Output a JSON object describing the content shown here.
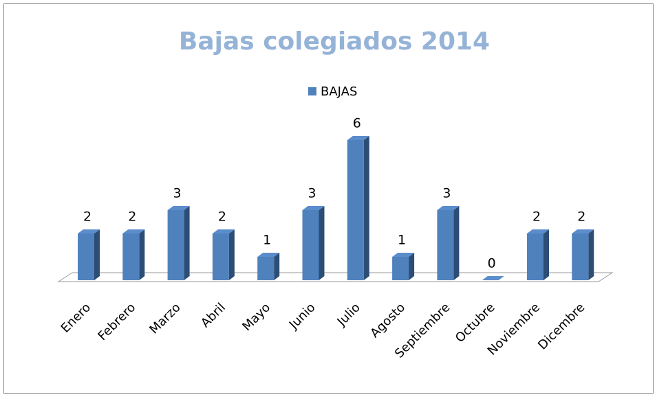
{
  "chart_data": {
    "type": "bar",
    "title": "Bajas colegiados 2014",
    "categories": [
      "Enero",
      "Febrero",
      "Marzo",
      "Abril",
      "Mayo",
      "Junio",
      "Julio",
      "Agosto",
      "Septiembre",
      "Octubre",
      "Noviembre",
      "Dicembre"
    ],
    "series": [
      {
        "name": "BAJAS",
        "color": "#4f81bd",
        "values": [
          2,
          2,
          3,
          2,
          1,
          3,
          6,
          1,
          3,
          0,
          2,
          2
        ]
      }
    ],
    "legend": "top",
    "data_labels": true
  }
}
